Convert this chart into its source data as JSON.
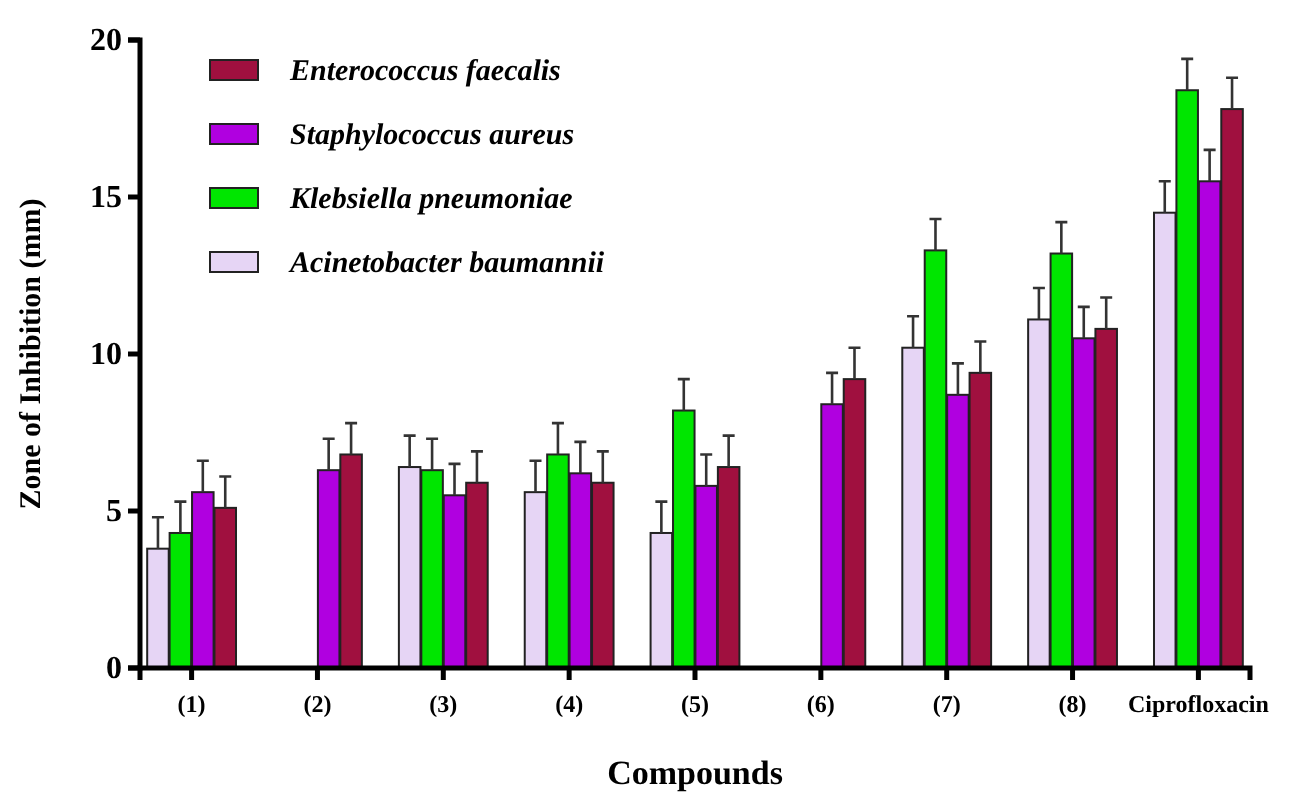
{
  "chart_data": {
    "type": "bar",
    "xlabel": "Compounds",
    "ylabel": "Zone of Inhibition (mm)",
    "categories": [
      "(1)",
      "(2)",
      "(3)",
      "(4)",
      "(5)",
      "(6)",
      "(7)",
      "(8)",
      "Ciprofloxacin"
    ],
    "series": [
      {
        "name": "Acinetobacter baumannii",
        "color": "#e6d5f5",
        "values": [
          3.8,
          null,
          6.4,
          5.6,
          4.3,
          null,
          10.2,
          11.1,
          14.5
        ],
        "errors": [
          1,
          null,
          1,
          1,
          1,
          null,
          1,
          1,
          1
        ]
      },
      {
        "name": "Klebsiella pneumoniae",
        "color": "#00e600",
        "values": [
          4.3,
          null,
          6.3,
          6.8,
          8.2,
          null,
          13.3,
          13.2,
          18.4
        ],
        "errors": [
          1,
          null,
          1,
          1,
          1,
          null,
          1,
          1,
          1
        ]
      },
      {
        "name": "Staphylococcus aureus",
        "color": "#b000e0",
        "values": [
          5.6,
          6.3,
          5.5,
          6.2,
          5.8,
          8.4,
          8.7,
          10.5,
          15.5
        ],
        "errors": [
          1,
          1,
          1,
          1,
          1,
          1,
          1,
          1,
          1
        ]
      },
      {
        "name": "Enterococcus faecalis",
        "color": "#a0103f",
        "values": [
          5.1,
          6.8,
          5.9,
          5.9,
          6.4,
          9.2,
          9.4,
          10.8,
          17.8
        ],
        "errors": [
          1,
          1,
          1,
          1,
          1,
          1,
          1,
          1,
          1
        ]
      }
    ],
    "ylim": [
      0,
      20
    ],
    "yticks": [
      0,
      5,
      10,
      15,
      20
    ],
    "legend": "top left"
  }
}
